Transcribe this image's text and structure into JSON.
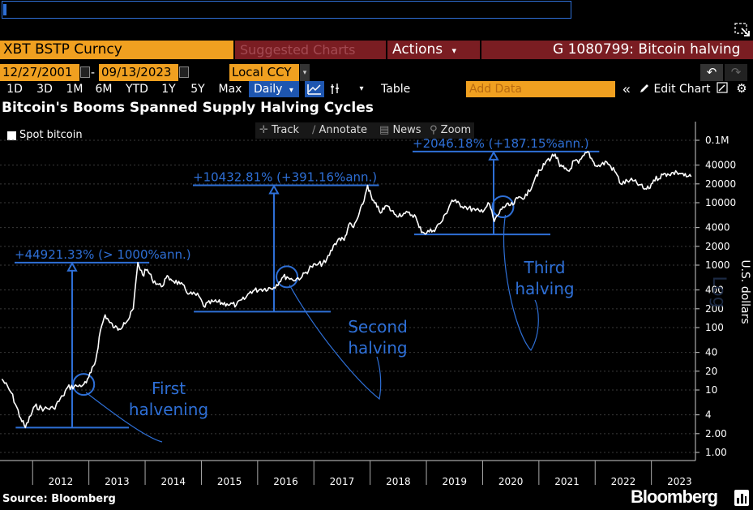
{
  "toolbar": {
    "ticker": "XBT BSTP Curncy",
    "suggested_charts": "Suggested Charts",
    "actions": "Actions",
    "actions_arrow": "▾",
    "window_title": "G 1080799: Bitcoin halving",
    "start_date": "12/27/2001",
    "end_date": "09/13/2023",
    "date_separator": "-",
    "currency": "Local CCY",
    "periods": [
      "1D",
      "3D",
      "1M",
      "6M",
      "YTD",
      "1Y",
      "5Y",
      "Max"
    ],
    "frequency": "Daily",
    "frequency_arrow": "▾",
    "table_label": "Table",
    "add_data_placeholder": "Add Data",
    "edit_chart_label": "Edit Chart",
    "undo_glyph": "↶",
    "redo_glyph": "↷",
    "collapse_glyph": "«",
    "caret_glyph": "▾"
  },
  "chart_tools": {
    "track": "Track",
    "annotate": "Annotate",
    "news": "News",
    "zoom": "Zoom"
  },
  "footer": {
    "source": "Source: Bloomberg",
    "brand": "Bloomberg"
  },
  "colors": {
    "ticker_bg": "#f0a020",
    "title_bar_bg": "#7a1d22",
    "annotation_blue": "#2e6fd6",
    "price_line": "#ffffff",
    "background": "#000000"
  },
  "chart_data": {
    "type": "line",
    "title": "Bitcoin's Booms Spanned Supply Halving Cycles",
    "legend": [
      "Spot bitcoin"
    ],
    "yscale": "log",
    "ylabel": "U.S. dollars",
    "ylabel_note": "Log",
    "ylim": [
      0.9,
      120000
    ],
    "y_ticks": [
      1,
      2,
      4,
      10,
      20,
      40,
      100,
      200,
      400,
      1000,
      2000,
      4000,
      10000,
      20000,
      40000,
      100000
    ],
    "y_tick_labels": [
      "1.00",
      "2.00",
      "4",
      "10",
      "20",
      "40",
      "100",
      "200",
      "400",
      "1000",
      "2000",
      "4000",
      "10000",
      "20000",
      "40000",
      "0.1M"
    ],
    "x_tick_labels": [
      "2012",
      "2013",
      "2014",
      "2015",
      "2016",
      "2017",
      "2018",
      "2019",
      "2020",
      "2021",
      "2022",
      "2023"
    ],
    "xlim": [
      "2011-06",
      "2023-09"
    ],
    "grid": true,
    "series": [
      {
        "name": "Spot bitcoin",
        "points": [
          [
            "2011-06",
            15
          ],
          [
            "2011-08",
            9
          ],
          [
            "2011-10",
            3.5
          ],
          [
            "2011-11",
            2.5
          ],
          [
            "2012-01",
            5.5
          ],
          [
            "2012-03",
            5
          ],
          [
            "2012-05",
            5.1
          ],
          [
            "2012-07",
            8
          ],
          [
            "2012-08",
            11
          ],
          [
            "2012-10",
            11.5
          ],
          [
            "2012-11-28",
            12.3
          ],
          [
            "2012-12",
            13
          ],
          [
            "2013-01",
            19
          ],
          [
            "2013-02",
            30
          ],
          [
            "2013-03",
            90
          ],
          [
            "2013-04",
            160
          ],
          [
            "2013-05",
            120
          ],
          [
            "2013-06",
            100
          ],
          [
            "2013-07",
            95
          ],
          [
            "2013-08",
            120
          ],
          [
            "2013-09",
            135
          ],
          [
            "2013-10",
            200
          ],
          [
            "2013-11",
            1100
          ],
          [
            "2013-12",
            700
          ],
          [
            "2014-01",
            850
          ],
          [
            "2014-02",
            600
          ],
          [
            "2014-04",
            450
          ],
          [
            "2014-05",
            620
          ],
          [
            "2014-06",
            600
          ],
          [
            "2014-08",
            500
          ],
          [
            "2014-10",
            350
          ],
          [
            "2014-12",
            320
          ],
          [
            "2015-01",
            220
          ],
          [
            "2015-03",
            260
          ],
          [
            "2015-06",
            240
          ],
          [
            "2015-08",
            230
          ],
          [
            "2015-10",
            300
          ],
          [
            "2015-11",
            380
          ],
          [
            "2016-01",
            410
          ],
          [
            "2016-04",
            440
          ],
          [
            "2016-06",
            650
          ],
          [
            "2016-07-09",
            650
          ],
          [
            "2016-08",
            580
          ],
          [
            "2016-10",
            650
          ],
          [
            "2016-12",
            950
          ],
          [
            "2017-01",
            1000
          ],
          [
            "2017-03",
            1100
          ],
          [
            "2017-05",
            2200
          ],
          [
            "2017-06",
            2700
          ],
          [
            "2017-07",
            2500
          ],
          [
            "2017-08",
            4500
          ],
          [
            "2017-09",
            4000
          ],
          [
            "2017-10",
            6000
          ],
          [
            "2017-11",
            9500
          ],
          [
            "2017-12",
            19000
          ],
          [
            "2018-01",
            11000
          ],
          [
            "2018-02",
            8500
          ],
          [
            "2018-03",
            7000
          ],
          [
            "2018-04",
            9000
          ],
          [
            "2018-06",
            6400
          ],
          [
            "2018-08",
            6700
          ],
          [
            "2018-10",
            6400
          ],
          [
            "2018-11",
            4000
          ],
          [
            "2018-12",
            3300
          ],
          [
            "2019-02",
            3600
          ],
          [
            "2019-04",
            5200
          ],
          [
            "2019-06",
            11000
          ],
          [
            "2019-07",
            10000
          ],
          [
            "2019-09",
            8500
          ],
          [
            "2019-11",
            7500
          ],
          [
            "2019-12",
            7200
          ],
          [
            "2020-02",
            9500
          ],
          [
            "2020-03",
            5000
          ],
          [
            "2020-05-11",
            8600
          ],
          [
            "2020-07",
            9200
          ],
          [
            "2020-08",
            11800
          ],
          [
            "2020-10",
            13000
          ],
          [
            "2020-12",
            28000
          ],
          [
            "2021-01",
            33000
          ],
          [
            "2021-02",
            45000
          ],
          [
            "2021-04",
            60000
          ],
          [
            "2021-05",
            38000
          ],
          [
            "2021-06",
            35000
          ],
          [
            "2021-07",
            32000
          ],
          [
            "2021-08",
            47000
          ],
          [
            "2021-09",
            43000
          ],
          [
            "2021-11",
            66000
          ],
          [
            "2021-12",
            47000
          ],
          [
            "2022-01",
            38000
          ],
          [
            "2022-03",
            45000
          ],
          [
            "2022-05",
            30000
          ],
          [
            "2022-06",
            20000
          ],
          [
            "2022-08",
            23000
          ],
          [
            "2022-10",
            19500
          ],
          [
            "2022-11",
            16500
          ],
          [
            "2022-12",
            16800
          ],
          [
            "2023-01",
            23000
          ],
          [
            "2023-03",
            28000
          ],
          [
            "2023-04",
            29000
          ],
          [
            "2023-06",
            30500
          ],
          [
            "2023-07",
            29500
          ],
          [
            "2023-08",
            26000
          ],
          [
            "2023-09",
            26000
          ]
        ]
      }
    ],
    "annotations": [
      {
        "label": "+44921.33% (> 1000%ann.)",
        "from": [
          "2011-11",
          2.5
        ],
        "to": [
          "2013-11",
          1100
        ],
        "halving_date": "2012-11-28",
        "halving_label": [
          "First",
          "halvening"
        ]
      },
      {
        "label": "+10432.81% (+391.16%ann.)",
        "from": [
          "2015-01",
          180
        ],
        "to": [
          "2017-12",
          19000
        ],
        "halving_date": "2016-07-09",
        "halving_label": [
          "Second",
          "halving"
        ]
      },
      {
        "label": "+2046.18% (+187.15%ann.)",
        "from": [
          "2018-12",
          3100
        ],
        "to": [
          "2021-11",
          66000
        ],
        "halving_date": "2020-05-11",
        "halving_label": [
          "Third",
          "halving"
        ]
      }
    ]
  }
}
